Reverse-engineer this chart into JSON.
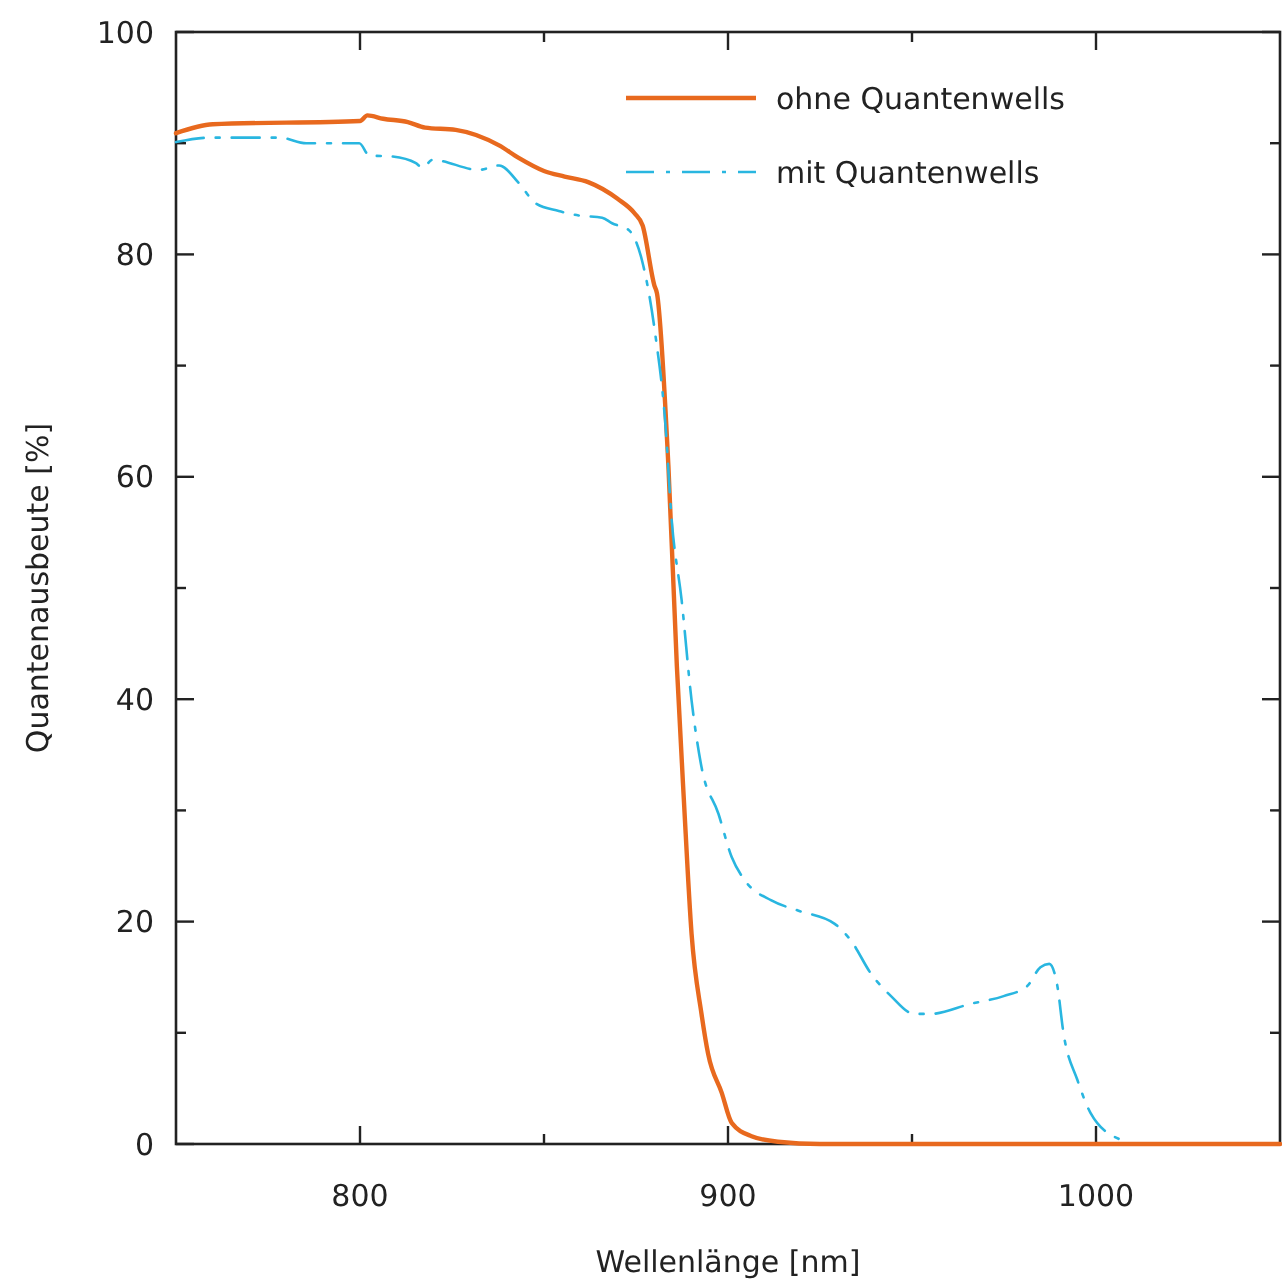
{
  "chart_data": {
    "type": "line",
    "xlabel": "Wellenlänge [nm]",
    "ylabel": "Quantenausbeute [%]",
    "xlim": [
      750,
      1050
    ],
    "ylim": [
      0,
      100
    ],
    "xticks": [
      800,
      {
        "value": 850,
        "label": null
      },
      900,
      {
        "value": 950,
        "label": null
      },
      1000
    ],
    "yticks": [
      0,
      {
        "value": 10,
        "label": null
      },
      20,
      {
        "value": 30,
        "label": null
      },
      40,
      {
        "value": 50,
        "label": null
      },
      60,
      {
        "value": 70,
        "label": null
      },
      80,
      {
        "value": 90,
        "label": null
      },
      100
    ],
    "grid": false,
    "legend": "top right",
    "marker": "none",
    "series": [
      {
        "name": "ohne Quantenwells",
        "color": "#e8691e",
        "line_style": "solid",
        "x": [
          750,
          760,
          800,
          802,
          806.3,
          813,
          817.7,
          826,
          837.8,
          843,
          850,
          855.6,
          862,
          870,
          874.6,
          876.8,
          880,
          880.7,
          883.8,
          886.1,
          888,
          890.1,
          892.8,
          894.6,
          898.3,
          901,
          906.4,
          913.6,
          925,
          1050
        ],
        "values": [
          90.9,
          91.7,
          92,
          92.5,
          92.2,
          91.9,
          91.4,
          91.2,
          89.8,
          88.7,
          87.5,
          87,
          86.5,
          85,
          83.7,
          82.6,
          77.2,
          76.5,
          61,
          43,
          31,
          18.9,
          11.7,
          8.1,
          4.6,
          1.9,
          0.7,
          0.2,
          0,
          0
        ]
      },
      {
        "name": "mit Quantenwells",
        "color": "#29b6e0",
        "line_style": "dashed",
        "x": [
          750,
          759.2,
          778.2,
          785.4,
          799.8,
          802.5,
          808.9,
          815.2,
          817,
          819.7,
          832.3,
          837.8,
          843.2,
          847.7,
          854,
          859.4,
          865.8,
          868.5,
          873,
          876.6,
          880.2,
          882.9,
          884.7,
          887.4,
          890.1,
          892.8,
          897.4,
          901,
          904.6,
          911.8,
          919,
          929,
          933.4,
          938.9,
          944.3,
          950.6,
          955.1,
          965.9,
          974.9,
          981.3,
          984.9,
          987.3,
          989.4,
          991.2,
          994.9,
          998.5,
          1006.6
        ],
        "values": [
          90.1,
          90.5,
          90.5,
          90,
          90,
          88.9,
          88.8,
          88.2,
          87.8,
          88.5,
          87.6,
          88,
          86.4,
          84.6,
          83.9,
          83.5,
          83.3,
          82.8,
          82.2,
          79.5,
          72.9,
          65.1,
          56.1,
          48.9,
          39.9,
          33.9,
          29.7,
          25.8,
          23.7,
          21.9,
          21,
          19.8,
          18.3,
          15.3,
          13.3,
          11.7,
          11.7,
          12.6,
          13.3,
          14.2,
          15.9,
          16.2,
          14.4,
          9.9,
          5.8,
          2.8,
          0.4
        ]
      }
    ]
  }
}
